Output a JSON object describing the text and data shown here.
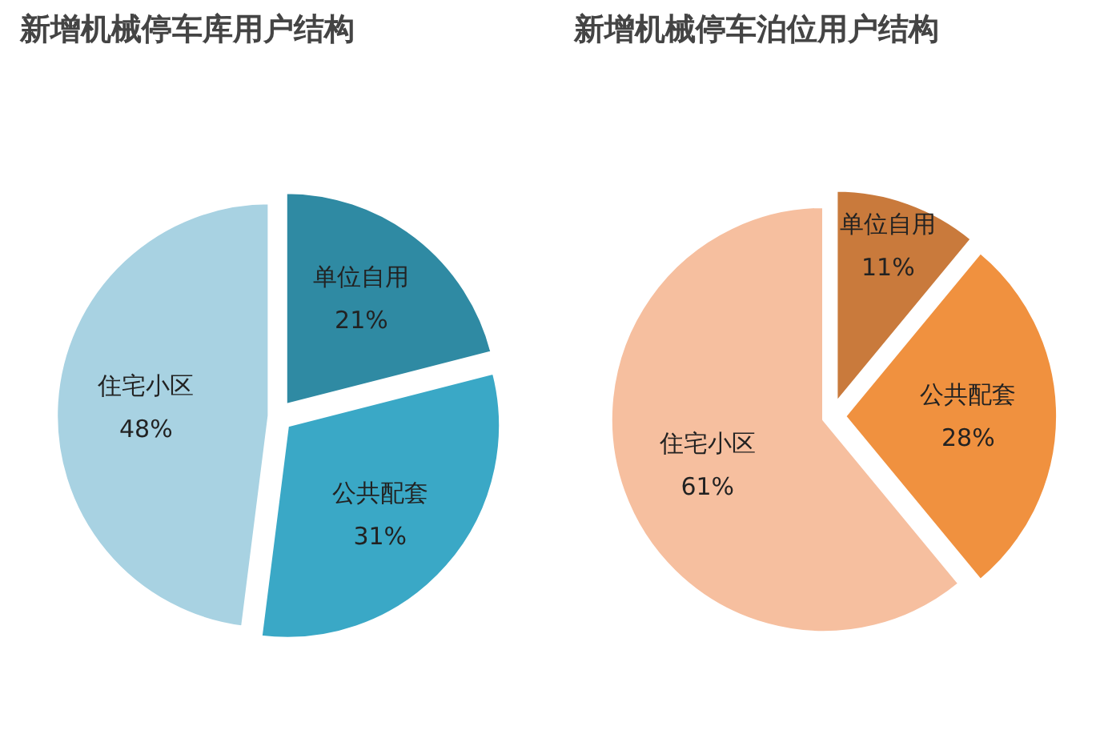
{
  "chart_data": [
    {
      "type": "pie",
      "title": "新增机械停车库用户结构",
      "categories": [
        "单位自用",
        "公共配套",
        "住宅小区"
      ],
      "values": [
        21,
        31,
        48
      ],
      "colors": [
        "#2f8aa3",
        "#3aa8c6",
        "#a8d2e2"
      ],
      "value_labels": [
        "21%",
        "31%",
        "48%"
      ]
    },
    {
      "type": "pie",
      "title": "新增机械停车泊位用户结构",
      "categories": [
        "单位自用",
        "公共配套",
        "住宅小区"
      ],
      "values": [
        11,
        28,
        61
      ],
      "colors": [
        "#c97a3c",
        "#f0913f",
        "#f6bf9f"
      ],
      "value_labels": [
        "11%",
        "28%",
        "61%"
      ]
    }
  ]
}
